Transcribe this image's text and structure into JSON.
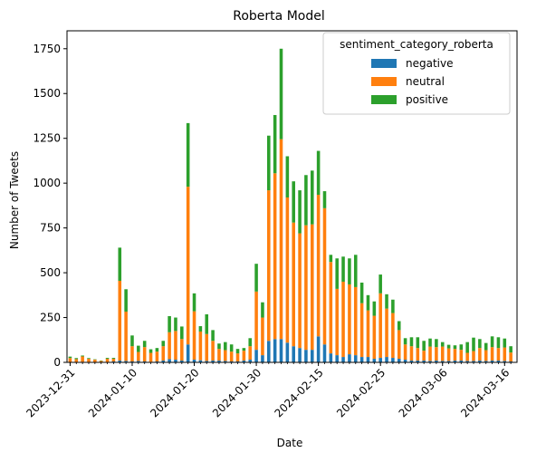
{
  "chart_data": {
    "type": "bar",
    "stacked": true,
    "title": "Roberta Model",
    "xlabel": "Date",
    "ylabel": "Number of Tweets",
    "ylim": [
      0,
      1850
    ],
    "yticks": [
      0,
      250,
      500,
      750,
      1000,
      1250,
      1500,
      1750
    ],
    "grid": false,
    "x_tick_labels": [
      {
        "label": "2023-12-31",
        "index": 0
      },
      {
        "label": "2024-01-10",
        "index": 10
      },
      {
        "label": "2024-01-20",
        "index": 20
      },
      {
        "label": "2024-01-30",
        "index": 30
      },
      {
        "label": "2024-02-15",
        "index": 40
      },
      {
        "label": "2024-02-25",
        "index": 50
      },
      {
        "label": "2024-03-06",
        "index": 60
      },
      {
        "label": "2024-03-16",
        "index": 70
      }
    ],
    "legend": {
      "title": "sentiment_category_roberta",
      "placement": "top-right"
    },
    "series": [
      {
        "name": "negative",
        "color": "#1f77b4",
        "values": [
          2,
          2,
          3,
          2,
          1,
          0,
          2,
          5,
          10,
          8,
          5,
          8,
          5,
          3,
          5,
          10,
          18,
          15,
          10,
          100,
          15,
          12,
          8,
          10,
          10,
          8,
          5,
          5,
          10,
          15,
          70,
          40,
          120,
          130,
          130,
          110,
          90,
          80,
          70,
          70,
          145,
          100,
          50,
          40,
          30,
          45,
          40,
          30,
          30,
          20,
          25,
          30,
          25,
          20,
          15,
          10,
          10,
          10,
          8,
          10,
          8,
          8,
          10,
          10,
          8,
          8,
          10,
          8,
          10,
          10,
          8,
          5
        ]
      },
      {
        "name": "neutral",
        "color": "#ff7f0e",
        "values": [
          22,
          16,
          30,
          18,
          14,
          8,
          18,
          15,
          445,
          275,
          85,
          50,
          80,
          50,
          55,
          80,
          150,
          160,
          120,
          880,
          270,
          160,
          150,
          110,
          65,
          60,
          55,
          45,
          55,
          75,
          325,
          210,
          840,
          925,
          1115,
          810,
          690,
          640,
          695,
          700,
          790,
          760,
          510,
          370,
          420,
          390,
          380,
          300,
          260,
          240,
          360,
          270,
          250,
          160,
          85,
          80,
          70,
          55,
          80,
          75,
          80,
          70,
          65,
          60,
          45,
          55,
          70,
          60,
          75,
          70,
          75,
          50
        ]
      },
      {
        "name": "positive",
        "color": "#2ca02c",
        "values": [
          8,
          6,
          5,
          4,
          2,
          2,
          5,
          5,
          185,
          125,
          60,
          35,
          35,
          20,
          20,
          30,
          90,
          75,
          70,
          355,
          100,
          30,
          110,
          60,
          30,
          45,
          40,
          25,
          15,
          45,
          155,
          85,
          305,
          325,
          505,
          230,
          230,
          240,
          280,
          300,
          245,
          95,
          40,
          170,
          140,
          145,
          180,
          115,
          85,
          80,
          105,
          80,
          75,
          50,
          35,
          50,
          60,
          55,
          45,
          45,
          25,
          20,
          20,
          30,
          60,
          75,
          50,
          40,
          60,
          60,
          50,
          35
        ]
      }
    ]
  }
}
